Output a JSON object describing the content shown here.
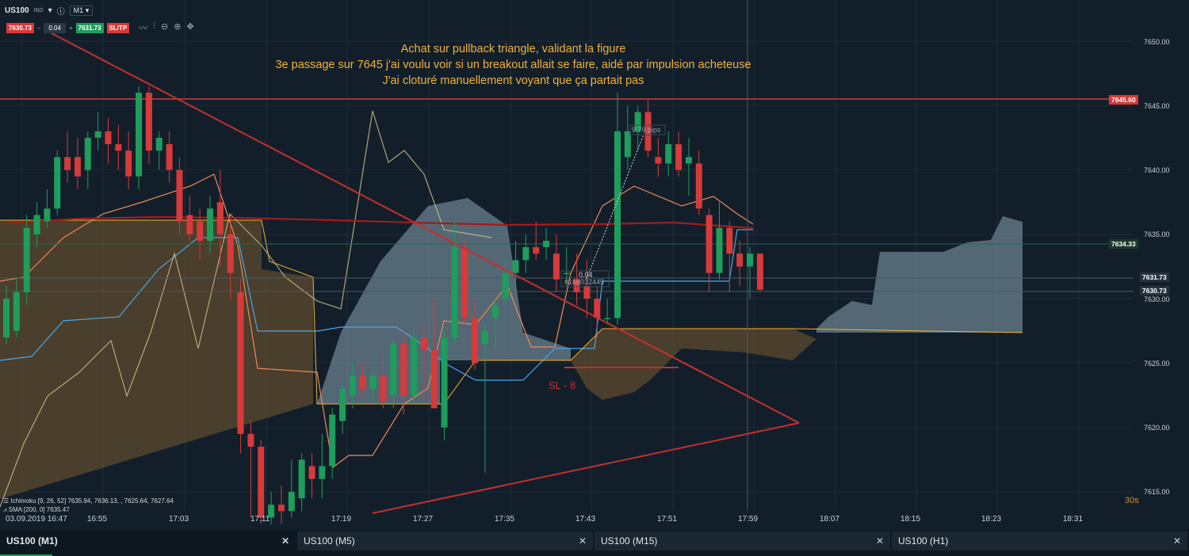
{
  "header": {
    "symbol": "US100",
    "market": "IND",
    "timeframe": "M1",
    "sell_price": "7630.73",
    "qty": "0.04",
    "buy_price": "7631.73",
    "sltp": "SL/TP",
    "tools": [
      "chart-type-icon",
      "indicators-icon",
      "zoom-out-icon",
      "zoom-in-icon",
      "crosshair-icon"
    ]
  },
  "annotation": {
    "line1": "Achat sur pullback triangle, validant la figure",
    "line2": "3e passage sur 7645 j'ai voulu voir si un breakout allait se faire, aidé par impulsion acheteuse",
    "line3": "J'ai cloturé manuellement voyant que ça partait pas"
  },
  "sl_label": "SL - 8",
  "pips_label": "9.79 pips",
  "order_label": "0.04",
  "order_id": "#166032449",
  "indicator_legend": {
    "ichimoku": "Ichimoku [9, 26, 52] 7635.94, 7636.13, , 7625.64, 7627.64",
    "sma": "SMA [200, 0] 7635.47"
  },
  "countdown": "30s",
  "y_axis": [
    "7650.00",
    "7645.00",
    "7640.00",
    "7635.00",
    "7630.00",
    "7625.00",
    "7620.00",
    "7615.00"
  ],
  "price_tags": {
    "resistance": "7645.60",
    "sma": "7634.33",
    "ask": "7631.73",
    "bid": "7630.73"
  },
  "x_axis": [
    "03.09.2019 16:47",
    "16:55",
    "17:03",
    "17:11",
    "17:19",
    "17:27",
    "17:35",
    "17:43",
    "17:51",
    "17:59",
    "18:07",
    "18:15",
    "18:23",
    "18:31"
  ],
  "tabs": [
    {
      "label": "US100 (M1)",
      "active": true
    },
    {
      "label": "US100 (M5)",
      "active": false
    },
    {
      "label": "US100 (M15)",
      "active": false
    },
    {
      "label": "US100 (H1)",
      "active": false
    }
  ],
  "colors": {
    "background": "#121f2b",
    "bull": "#1f9d5c",
    "bear": "#d63a3a",
    "annotation": "#f2b233",
    "trendline": "#c62f2f"
  },
  "chart_data": {
    "type": "candlestick",
    "ylim": [
      7612.5,
      7652
    ],
    "candles": [
      {
        "t": "16:47",
        "o": 7627.0,
        "h": 7631.0,
        "l": 7626.5,
        "c": 7630.0
      },
      {
        "t": "16:48",
        "o": 7627.5,
        "h": 7631.5,
        "l": 7627.0,
        "c": 7630.5
      },
      {
        "t": "16:49",
        "o": 7630.5,
        "h": 7636.5,
        "l": 7629.5,
        "c": 7635.5
      },
      {
        "t": "16:50",
        "o": 7635.0,
        "h": 7637.5,
        "l": 7634.0,
        "c": 7636.5
      },
      {
        "t": "16:51",
        "o": 7636.0,
        "h": 7638.5,
        "l": 7635.5,
        "c": 7637.0
      },
      {
        "t": "16:52",
        "o": 7637.0,
        "h": 7641.5,
        "l": 7636.5,
        "c": 7641.0
      },
      {
        "t": "16:53",
        "o": 7641.0,
        "h": 7643.0,
        "l": 7639.0,
        "c": 7640.0
      },
      {
        "t": "16:54",
        "o": 7641.0,
        "h": 7642.5,
        "l": 7638.5,
        "c": 7639.5
      },
      {
        "t": "16:55",
        "o": 7640.0,
        "h": 7643.0,
        "l": 7638.5,
        "c": 7642.5
      },
      {
        "t": "16:56",
        "o": 7642.5,
        "h": 7644.5,
        "l": 7641.5,
        "c": 7643.0
      },
      {
        "t": "16:57",
        "o": 7643.0,
        "h": 7644.0,
        "l": 7640.5,
        "c": 7642.0
      },
      {
        "t": "16:58",
        "o": 7642.0,
        "h": 7643.5,
        "l": 7640.0,
        "c": 7641.5
      },
      {
        "t": "16:59",
        "o": 7641.5,
        "h": 7643.0,
        "l": 7638.5,
        "c": 7639.5
      },
      {
        "t": "17:00",
        "o": 7639.5,
        "h": 7646.5,
        "l": 7638.5,
        "c": 7646.0
      },
      {
        "t": "17:01",
        "o": 7646.0,
        "h": 7646.5,
        "l": 7640.5,
        "c": 7641.5
      },
      {
        "t": "17:02",
        "o": 7641.5,
        "h": 7643.0,
        "l": 7640.0,
        "c": 7642.5
      },
      {
        "t": "17:03",
        "o": 7642.0,
        "h": 7643.0,
        "l": 7639.0,
        "c": 7640.0
      },
      {
        "t": "17:04",
        "o": 7640.0,
        "h": 7641.0,
        "l": 7635.0,
        "c": 7636.0
      },
      {
        "t": "17:05",
        "o": 7636.5,
        "h": 7638.0,
        "l": 7634.5,
        "c": 7635.0
      },
      {
        "t": "17:06",
        "o": 7636.0,
        "h": 7637.0,
        "l": 7633.0,
        "c": 7634.5
      },
      {
        "t": "17:07",
        "o": 7634.5,
        "h": 7638.0,
        "l": 7633.5,
        "c": 7637.0
      },
      {
        "t": "17:08",
        "o": 7637.5,
        "h": 7640.0,
        "l": 7632.5,
        "c": 7635.0
      },
      {
        "t": "17:09",
        "o": 7635.0,
        "h": 7636.5,
        "l": 7630.0,
        "c": 7632.0
      },
      {
        "t": "17:10",
        "o": 7630.5,
        "h": 7631.5,
        "l": 7618.0,
        "c": 7619.5
      },
      {
        "t": "17:11",
        "o": 7619.5,
        "h": 7620.5,
        "l": 7613.0,
        "c": 7618.5
      },
      {
        "t": "17:12",
        "o": 7618.5,
        "h": 7619.0,
        "l": 7612.5,
        "c": 7613.0
      },
      {
        "t": "17:13",
        "o": 7613.0,
        "h": 7615.0,
        "l": 7612.5,
        "c": 7614.0
      },
      {
        "t": "17:14",
        "o": 7614.0,
        "h": 7615.5,
        "l": 7612.5,
        "c": 7613.5
      },
      {
        "t": "17:15",
        "o": 7613.5,
        "h": 7617.5,
        "l": 7613.0,
        "c": 7615.0
      },
      {
        "t": "17:16",
        "o": 7614.5,
        "h": 7618.0,
        "l": 7613.5,
        "c": 7617.5
      },
      {
        "t": "17:17",
        "o": 7617.0,
        "h": 7618.0,
        "l": 7614.5,
        "c": 7616.0
      },
      {
        "t": "17:18",
        "o": 7616.0,
        "h": 7619.5,
        "l": 7614.5,
        "c": 7617.0
      },
      {
        "t": "17:19",
        "o": 7617.0,
        "h": 7621.5,
        "l": 7616.0,
        "c": 7621.0
      },
      {
        "t": "17:20",
        "o": 7620.5,
        "h": 7623.5,
        "l": 7619.5,
        "c": 7623.0
      },
      {
        "t": "17:21",
        "o": 7622.5,
        "h": 7625.0,
        "l": 7621.5,
        "c": 7624.0
      },
      {
        "t": "17:22",
        "o": 7624.0,
        "h": 7625.0,
        "l": 7622.5,
        "c": 7623.0
      },
      {
        "t": "17:23",
        "o": 7623.0,
        "h": 7624.5,
        "l": 7622.0,
        "c": 7624.0
      },
      {
        "t": "17:24",
        "o": 7624.0,
        "h": 7626.0,
        "l": 7621.5,
        "c": 7622.0
      },
      {
        "t": "17:25",
        "o": 7622.5,
        "h": 7627.0,
        "l": 7621.5,
        "c": 7626.5
      },
      {
        "t": "17:26",
        "o": 7626.5,
        "h": 7627.5,
        "l": 7621.0,
        "c": 7622.5
      },
      {
        "t": "17:27",
        "o": 7622.5,
        "h": 7627.5,
        "l": 7622.0,
        "c": 7627.0
      },
      {
        "t": "17:28",
        "o": 7627.0,
        "h": 7628.0,
        "l": 7622.0,
        "c": 7626.0
      },
      {
        "t": "17:29",
        "o": 7626.0,
        "h": 7630.0,
        "l": 7621.5,
        "c": 7621.5
      },
      {
        "t": "17:30",
        "o": 7620.0,
        "h": 7627.5,
        "l": 7619.0,
        "c": 7627.0
      },
      {
        "t": "17:31",
        "o": 7627.0,
        "h": 7636.0,
        "l": 7626.5,
        "c": 7634.0
      },
      {
        "t": "17:32",
        "o": 7634.0,
        "h": 7634.5,
        "l": 7628.0,
        "c": 7628.5
      },
      {
        "t": "17:33",
        "o": 7628.5,
        "h": 7630.0,
        "l": 7624.5,
        "c": 7625.0
      },
      {
        "t": "17:34",
        "o": 7626.5,
        "h": 7628.0,
        "l": 7616.5,
        "c": 7627.5
      },
      {
        "t": "17:35",
        "o": 7628.5,
        "h": 7630.0,
        "l": 7626.0,
        "c": 7629.5
      },
      {
        "t": "17:36",
        "o": 7630.0,
        "h": 7633.0,
        "l": 7629.0,
        "c": 7632.0
      },
      {
        "t": "17:37",
        "o": 7632.0,
        "h": 7634.5,
        "l": 7630.5,
        "c": 7633.0
      },
      {
        "t": "17:38",
        "o": 7633.0,
        "h": 7635.0,
        "l": 7632.0,
        "c": 7634.0
      },
      {
        "t": "17:39",
        "o": 7634.0,
        "h": 7636.0,
        "l": 7633.0,
        "c": 7633.5
      },
      {
        "t": "17:40",
        "o": 7634.0,
        "h": 7635.5,
        "l": 7633.0,
        "c": 7634.5
      },
      {
        "t": "17:41",
        "o": 7633.5,
        "h": 7635.0,
        "l": 7630.5,
        "c": 7631.5
      },
      {
        "t": "17:42",
        "o": 7632.0,
        "h": 7634.0,
        "l": 7631.0,
        "c": 7632.0
      },
      {
        "t": "17:43",
        "o": 7631.5,
        "h": 7633.5,
        "l": 7629.5,
        "c": 7630.5
      },
      {
        "t": "17:44",
        "o": 7631.0,
        "h": 7633.0,
        "l": 7628.5,
        "c": 7630.0
      },
      {
        "t": "17:45",
        "o": 7630.0,
        "h": 7631.0,
        "l": 7627.0,
        "c": 7628.5
      },
      {
        "t": "17:46",
        "o": 7628.5,
        "h": 7630.0,
        "l": 7628.0,
        "c": 7628.5
      },
      {
        "t": "17:47",
        "o": 7628.5,
        "h": 7646.0,
        "l": 7628.0,
        "c": 7643.0
      },
      {
        "t": "17:48",
        "o": 7641.0,
        "h": 7645.0,
        "l": 7640.0,
        "c": 7643.0
      },
      {
        "t": "17:49",
        "o": 7643.0,
        "h": 7645.0,
        "l": 7641.5,
        "c": 7644.5
      },
      {
        "t": "17:50",
        "o": 7644.5,
        "h": 7645.5,
        "l": 7641.0,
        "c": 7641.5
      },
      {
        "t": "17:51",
        "o": 7641.0,
        "h": 7642.5,
        "l": 7639.5,
        "c": 7640.5
      },
      {
        "t": "17:52",
        "o": 7640.5,
        "h": 7643.0,
        "l": 7639.5,
        "c": 7642.0
      },
      {
        "t": "17:53",
        "o": 7642.0,
        "h": 7643.0,
        "l": 7639.5,
        "c": 7640.0
      },
      {
        "t": "17:54",
        "o": 7640.5,
        "h": 7642.5,
        "l": 7638.0,
        "c": 7641.0
      },
      {
        "t": "17:55",
        "o": 7640.5,
        "h": 7641.5,
        "l": 7636.5,
        "c": 7637.0
      },
      {
        "t": "17:56",
        "o": 7636.5,
        "h": 7637.0,
        "l": 7630.5,
        "c": 7632.0
      },
      {
        "t": "17:57",
        "o": 7632.0,
        "h": 7637.5,
        "l": 7631.5,
        "c": 7635.5
      },
      {
        "t": "17:58",
        "o": 7635.5,
        "h": 7636.0,
        "l": 7630.5,
        "c": 7633.5
      },
      {
        "t": "17:59",
        "o": 7633.5,
        "h": 7634.5,
        "l": 7631.0,
        "c": 7632.5
      },
      {
        "t": "18:00",
        "o": 7632.5,
        "h": 7634.0,
        "l": 7630.0,
        "c": 7633.5
      },
      {
        "t": "18:01",
        "o": 7633.5,
        "h": 7633.5,
        "l": 7630.5,
        "c": 7630.7
      }
    ]
  }
}
